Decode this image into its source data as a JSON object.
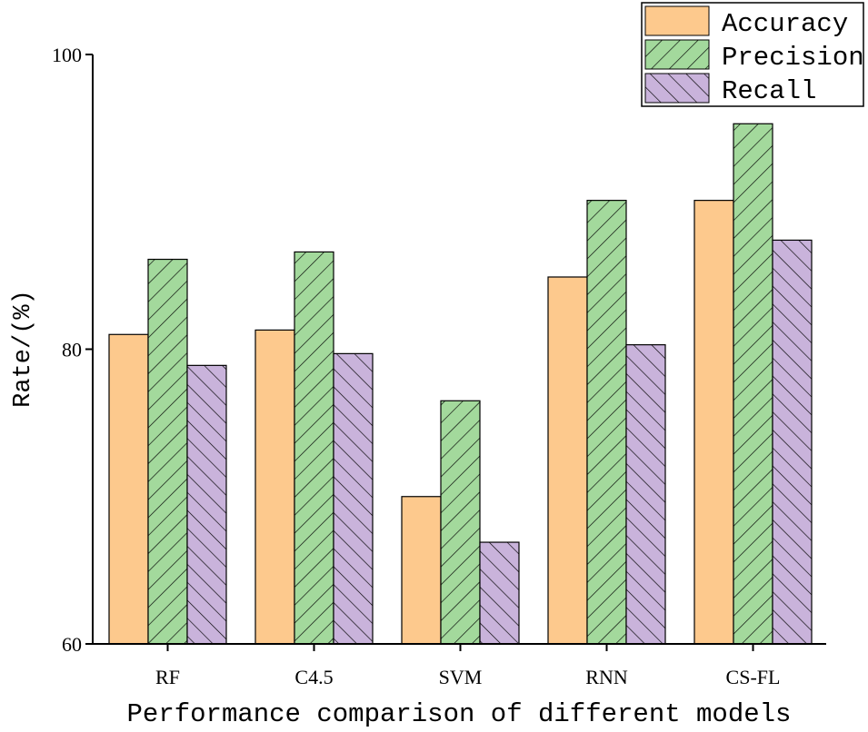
{
  "chart_data": {
    "type": "bar",
    "title": "",
    "xlabel": "Performance comparison of different models",
    "ylabel": "Rate/(%)",
    "categories": [
      "RF",
      "C4.5",
      "SVM",
      "RNN",
      "CS-FL"
    ],
    "series": [
      {
        "name": "Accuracy",
        "values": [
          81.0,
          81.3,
          70.0,
          84.9,
          90.1
        ],
        "fill": "#FDC98D",
        "pattern": "none"
      },
      {
        "name": "Precision",
        "values": [
          86.1,
          86.6,
          76.5,
          90.1,
          95.3
        ],
        "fill": "#A3D99C",
        "pattern": "forward-diagonal"
      },
      {
        "name": "Recall",
        "values": [
          78.9,
          79.7,
          66.9,
          80.3,
          87.4
        ],
        "fill": "#C9B3DB",
        "pattern": "backward-diagonal"
      }
    ],
    "ylim": [
      60,
      100
    ],
    "yticks": [
      60,
      80,
      100
    ],
    "legend_position": "top-right",
    "grid": false
  }
}
